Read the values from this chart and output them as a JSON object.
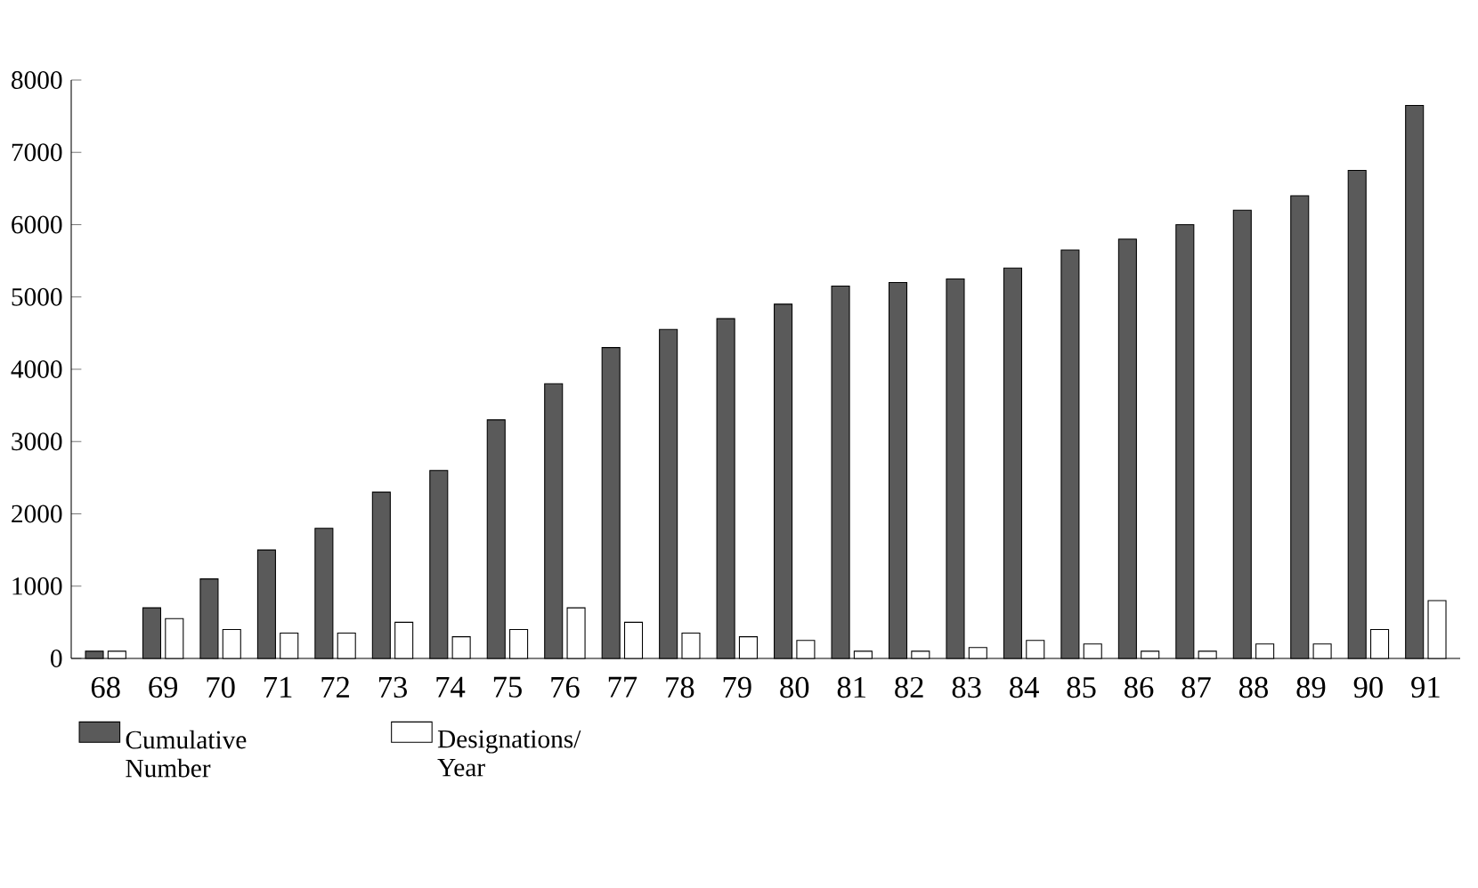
{
  "chart_data": {
    "type": "bar",
    "categories": [
      "68",
      "69",
      "70",
      "71",
      "72",
      "73",
      "74",
      "75",
      "76",
      "77",
      "78",
      "79",
      "80",
      "81",
      "82",
      "83",
      "84",
      "85",
      "86",
      "87",
      "88",
      "89",
      "90",
      "91"
    ],
    "series": [
      {
        "name": "Cumulative Number",
        "color": "#5a5a5a",
        "values": [
          100,
          700,
          1100,
          1500,
          1800,
          2300,
          2600,
          3300,
          3800,
          4300,
          4550,
          4700,
          4900,
          5150,
          5200,
          5250,
          5400,
          5650,
          5800,
          6000,
          6200,
          6400,
          6750,
          7650
        ]
      },
      {
        "name": "Designations/ Year",
        "color": "#ffffff",
        "values": [
          100,
          550,
          400,
          350,
          350,
          500,
          300,
          400,
          700,
          500,
          350,
          300,
          250,
          100,
          100,
          150,
          250,
          200,
          100,
          100,
          200,
          200,
          400,
          800
        ]
      }
    ],
    "ylim": [
      0,
      8000
    ],
    "yticks": [
      0,
      1000,
      2000,
      3000,
      4000,
      5000,
      6000,
      7000,
      8000
    ],
    "grid": false,
    "legend": "bottom left"
  }
}
